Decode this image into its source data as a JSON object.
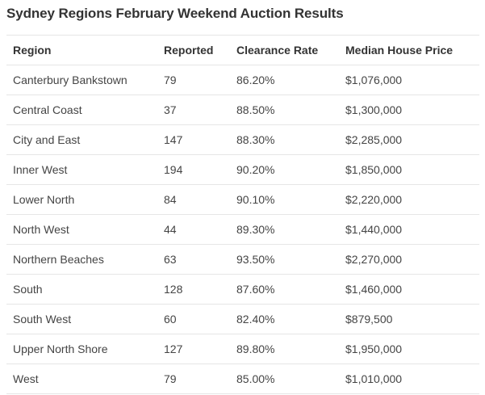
{
  "title": "Sydney Regions February Weekend Auction Results",
  "table": {
    "headers": [
      "Region",
      "Reported",
      "Clearance Rate",
      "Median House Price"
    ],
    "rows": [
      [
        "Canterbury Bankstown",
        "79",
        "86.20%",
        "$1,076,000"
      ],
      [
        "Central Coast",
        "37",
        "88.50%",
        "$1,300,000"
      ],
      [
        "City and East",
        "147",
        "88.30%",
        "$2,285,000"
      ],
      [
        "Inner West",
        "194",
        "90.20%",
        "$1,850,000"
      ],
      [
        "Lower North",
        "84",
        "90.10%",
        "$2,220,000"
      ],
      [
        "North West",
        "44",
        "89.30%",
        "$1,440,000"
      ],
      [
        "Northern Beaches",
        "63",
        "93.50%",
        "$2,270,000"
      ],
      [
        "South",
        "128",
        "87.60%",
        "$1,460,000"
      ],
      [
        "South West",
        "60",
        "82.40%",
        "$879,500"
      ],
      [
        "Upper North Shore",
        "127",
        "89.80%",
        "$1,950,000"
      ],
      [
        "West",
        "79",
        "85.00%",
        "$1,010,000"
      ]
    ]
  }
}
